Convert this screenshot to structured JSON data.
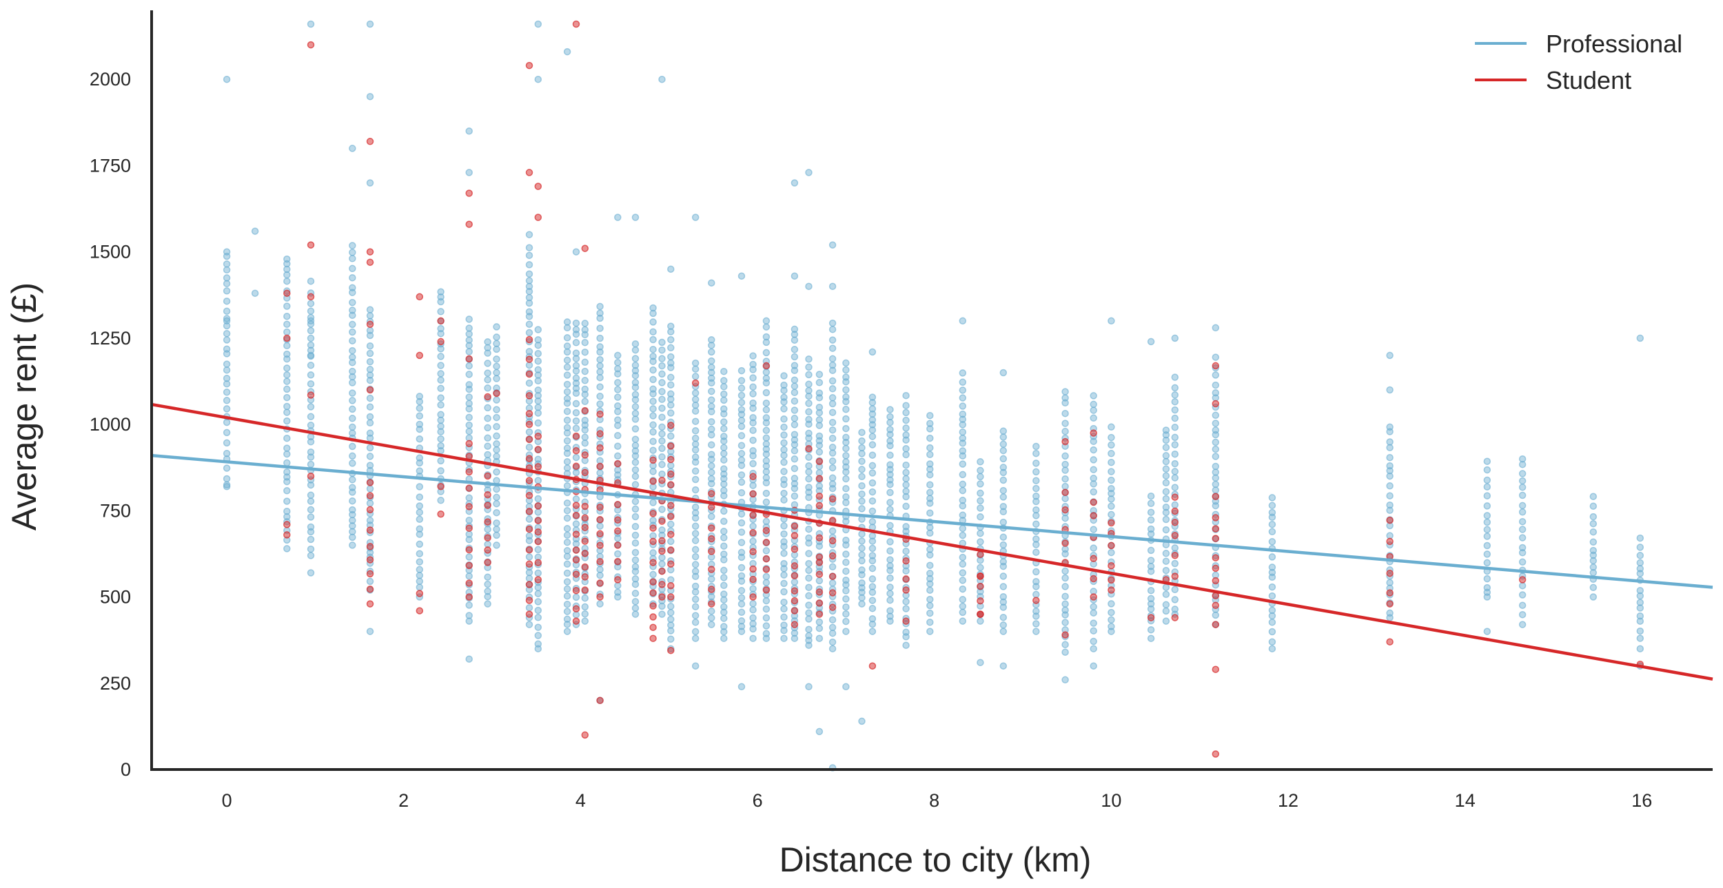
{
  "chart_data": {
    "type": "scatter",
    "title": "",
    "xlabel": "Distance to city (km)",
    "ylabel": "Average rent (£)",
    "xlim": [
      -0.85,
      16.8
    ],
    "ylim": [
      0,
      2200
    ],
    "x_ticks": [
      0,
      2,
      4,
      6,
      8,
      10,
      12,
      14,
      16
    ],
    "y_ticks": [
      0,
      250,
      500,
      750,
      1000,
      1250,
      1500,
      1750,
      2000
    ],
    "grid": false,
    "legend_position": "top-right",
    "series": [
      {
        "name": "Professional",
        "color": "#6aaed0",
        "regression": {
          "x": [
            -0.85,
            16.8
          ],
          "y": [
            910,
            528
          ]
        },
        "x_columns": [
          0,
          0.32,
          0.68,
          0.95,
          1.42,
          1.62,
          2.18,
          2.42,
          2.74,
          2.95,
          3.05,
          3.42,
          3.52,
          3.85,
          3.95,
          4.05,
          4.22,
          4.42,
          4.62,
          4.82,
          4.92,
          5.02,
          5.3,
          5.48,
          5.62,
          5.82,
          5.95,
          6.1,
          6.3,
          6.42,
          6.58,
          6.7,
          6.85,
          7.0,
          7.18,
          7.3,
          7.5,
          7.68,
          7.95,
          8.32,
          8.52,
          8.78,
          9.15,
          9.48,
          9.8,
          10.0,
          10.45,
          10.62,
          10.72,
          11.18,
          11.82,
          13.15,
          14.25,
          14.65,
          15.45,
          15.98
        ],
        "points": [
          [
            0,
            2000
          ],
          [
            0,
            1500
          ],
          [
            0,
            1300
          ],
          [
            0,
            825
          ],
          [
            0.32,
            1560
          ],
          [
            0.32,
            1380
          ],
          [
            0.95,
            2160
          ],
          [
            0.95,
            1415
          ],
          [
            0.95,
            1300
          ],
          [
            0.95,
            1200
          ],
          [
            0.95,
            570
          ],
          [
            1.62,
            2160
          ],
          [
            1.62,
            1950
          ],
          [
            1.62,
            1700
          ],
          [
            1.62,
            400
          ],
          [
            1.42,
            1800
          ],
          [
            2.74,
            1850
          ],
          [
            2.74,
            1730
          ],
          [
            2.74,
            320
          ],
          [
            3.52,
            2160
          ],
          [
            3.52,
            2000
          ],
          [
            3.42,
            1550
          ],
          [
            3.85,
            2080
          ],
          [
            3.95,
            1500
          ],
          [
            4.22,
            200
          ],
          [
            4.92,
            2000
          ],
          [
            4.42,
            1600
          ],
          [
            4.62,
            1600
          ],
          [
            5.3,
            1600
          ],
          [
            5.02,
            1450
          ],
          [
            5.48,
            1410
          ],
          [
            5.82,
            1430
          ],
          [
            6.1,
            1300
          ],
          [
            6.42,
            1700
          ],
          [
            6.58,
            1730
          ],
          [
            6.42,
            1430
          ],
          [
            6.58,
            1400
          ],
          [
            6.85,
            1520
          ],
          [
            6.85,
            1400
          ],
          [
            6.58,
            240
          ],
          [
            6.7,
            110
          ],
          [
            6.85,
            5
          ],
          [
            7.0,
            240
          ],
          [
            7.18,
            140
          ],
          [
            5.3,
            300
          ],
          [
            5.82,
            240
          ],
          [
            7.3,
            1210
          ],
          [
            8.32,
            1300
          ],
          [
            8.52,
            310
          ],
          [
            8.78,
            1150
          ],
          [
            8.78,
            300
          ],
          [
            9.48,
            260
          ],
          [
            9.8,
            300
          ],
          [
            10.0,
            1300
          ],
          [
            10.45,
            1240
          ],
          [
            10.72,
            1250
          ],
          [
            11.18,
            1280
          ],
          [
            13.15,
            1200
          ],
          [
            13.15,
            1100
          ],
          [
            14.25,
            400
          ],
          [
            14.65,
            900
          ],
          [
            15.98,
            1250
          ],
          [
            15.98,
            300
          ]
        ],
        "ranges": [
          [
            0,
            820,
            1500
          ],
          [
            0.68,
            640,
            1500
          ],
          [
            0.95,
            620,
            1400
          ],
          [
            1.42,
            650,
            1520
          ],
          [
            1.62,
            520,
            1360
          ],
          [
            2.18,
            500,
            1100
          ],
          [
            2.42,
            780,
            1400
          ],
          [
            2.74,
            430,
            1320
          ],
          [
            2.95,
            480,
            1250
          ],
          [
            3.05,
            650,
            1300
          ],
          [
            3.42,
            420,
            1520
          ],
          [
            3.52,
            350,
            1280
          ],
          [
            3.85,
            400,
            1300
          ],
          [
            3.95,
            420,
            1300
          ],
          [
            4.05,
            430,
            1300
          ],
          [
            4.22,
            480,
            1350
          ],
          [
            4.42,
            500,
            1200
          ],
          [
            4.62,
            450,
            1250
          ],
          [
            4.82,
            480,
            1350
          ],
          [
            4.92,
            450,
            1250
          ],
          [
            5.02,
            350,
            1300
          ],
          [
            5.3,
            380,
            1200
          ],
          [
            5.48,
            420,
            1250
          ],
          [
            5.62,
            380,
            1180
          ],
          [
            5.82,
            400,
            1180
          ],
          [
            5.95,
            380,
            1200
          ],
          [
            6.1,
            380,
            1300
          ],
          [
            6.3,
            380,
            1150
          ],
          [
            6.42,
            380,
            1300
          ],
          [
            6.58,
            360,
            1200
          ],
          [
            6.7,
            380,
            1150
          ],
          [
            6.85,
            350,
            1300
          ],
          [
            7.0,
            400,
            1200
          ],
          [
            7.18,
            480,
            1000
          ],
          [
            7.3,
            400,
            1080
          ],
          [
            7.5,
            430,
            1050
          ],
          [
            7.68,
            360,
            1100
          ],
          [
            7.95,
            400,
            1050
          ],
          [
            8.32,
            430,
            1150
          ],
          [
            8.52,
            430,
            900
          ],
          [
            8.78,
            400,
            1000
          ],
          [
            9.15,
            400,
            950
          ],
          [
            9.48,
            340,
            1100
          ],
          [
            9.8,
            350,
            1100
          ],
          [
            10.0,
            400,
            1000
          ],
          [
            10.45,
            380,
            800
          ],
          [
            10.62,
            430,
            1000
          ],
          [
            10.72,
            450,
            1150
          ],
          [
            11.18,
            420,
            1200
          ],
          [
            11.82,
            350,
            800
          ],
          [
            13.15,
            440,
            1000
          ],
          [
            14.25,
            500,
            900
          ],
          [
            14.65,
            420,
            900
          ],
          [
            15.45,
            500,
            800
          ],
          [
            15.98,
            350,
            680
          ]
        ]
      },
      {
        "name": "Student",
        "color": "#d62728",
        "regression": {
          "x": [
            -0.85,
            16.8
          ],
          "y": [
            1058,
            262
          ]
        },
        "points": [
          [
            0.95,
            2100
          ],
          [
            3.95,
            2160
          ],
          [
            1.62,
            1820
          ],
          [
            2.74,
            1670
          ],
          [
            2.74,
            1580
          ],
          [
            3.42,
            2040
          ],
          [
            3.42,
            1730
          ],
          [
            3.52,
            1690
          ],
          [
            3.52,
            1600
          ],
          [
            1.62,
            1470
          ],
          [
            1.62,
            1500
          ],
          [
            0.95,
            1520
          ],
          [
            0.68,
            1380
          ],
          [
            0.95,
            1370
          ],
          [
            2.18,
            1370
          ],
          [
            2.42,
            1300
          ],
          [
            2.42,
            1240
          ],
          [
            2.74,
            1190
          ],
          [
            4.05,
            1510
          ],
          [
            4.05,
            1040
          ],
          [
            4.05,
            100
          ],
          [
            4.22,
            200
          ],
          [
            7.3,
            300
          ],
          [
            11.18,
            1170
          ],
          [
            11.18,
            1060
          ],
          [
            11.18,
            290
          ],
          [
            11.18,
            45
          ],
          [
            13.15,
            370
          ],
          [
            9.48,
            950
          ],
          [
            9.8,
            975
          ],
          [
            15.98,
            305
          ],
          [
            0.68,
            1250
          ],
          [
            0.95,
            1085
          ],
          [
            0.95,
            850
          ],
          [
            0.68,
            710
          ],
          [
            0.68,
            680
          ],
          [
            1.62,
            1290
          ],
          [
            1.62,
            1100
          ],
          [
            2.18,
            1200
          ],
          [
            2.18,
            510
          ],
          [
            2.18,
            460
          ],
          [
            2.42,
            820
          ],
          [
            2.42,
            740
          ],
          [
            2.95,
            1080
          ],
          [
            3.05,
            1090
          ],
          [
            5.02,
            345
          ],
          [
            5.3,
            1120
          ],
          [
            6.1,
            1170
          ],
          [
            6.58,
            930
          ],
          [
            6.7,
            600
          ],
          [
            7.68,
            430
          ],
          [
            8.52,
            450
          ],
          [
            8.52,
            560
          ],
          [
            9.15,
            490
          ],
          [
            9.48,
            390
          ],
          [
            10.45,
            440
          ],
          [
            10.62,
            550
          ],
          [
            10.72,
            440
          ]
        ],
        "ranges": [
          [
            1.62,
            480,
            880
          ],
          [
            2.74,
            500,
            950
          ],
          [
            2.95,
            600,
            900
          ],
          [
            3.42,
            450,
            1300
          ],
          [
            3.52,
            550,
            1000
          ],
          [
            3.95,
            430,
            1000
          ],
          [
            4.05,
            520,
            950
          ],
          [
            4.22,
            500,
            1050
          ],
          [
            4.42,
            550,
            900
          ],
          [
            4.82,
            380,
            900
          ],
          [
            4.92,
            500,
            850
          ],
          [
            5.02,
            500,
            1000
          ],
          [
            5.48,
            480,
            800
          ],
          [
            5.95,
            500,
            850
          ],
          [
            6.1,
            520,
            750
          ],
          [
            6.42,
            420,
            800
          ],
          [
            6.7,
            450,
            900
          ],
          [
            6.85,
            470,
            800
          ],
          [
            7.68,
            520,
            680
          ],
          [
            8.52,
            450,
            650
          ],
          [
            9.48,
            600,
            850
          ],
          [
            9.8,
            500,
            800
          ],
          [
            10.0,
            520,
            750
          ],
          [
            10.72,
            560,
            800
          ],
          [
            11.18,
            420,
            800
          ],
          [
            13.15,
            480,
            750
          ],
          [
            14.65,
            550,
            580
          ]
        ]
      }
    ]
  }
}
